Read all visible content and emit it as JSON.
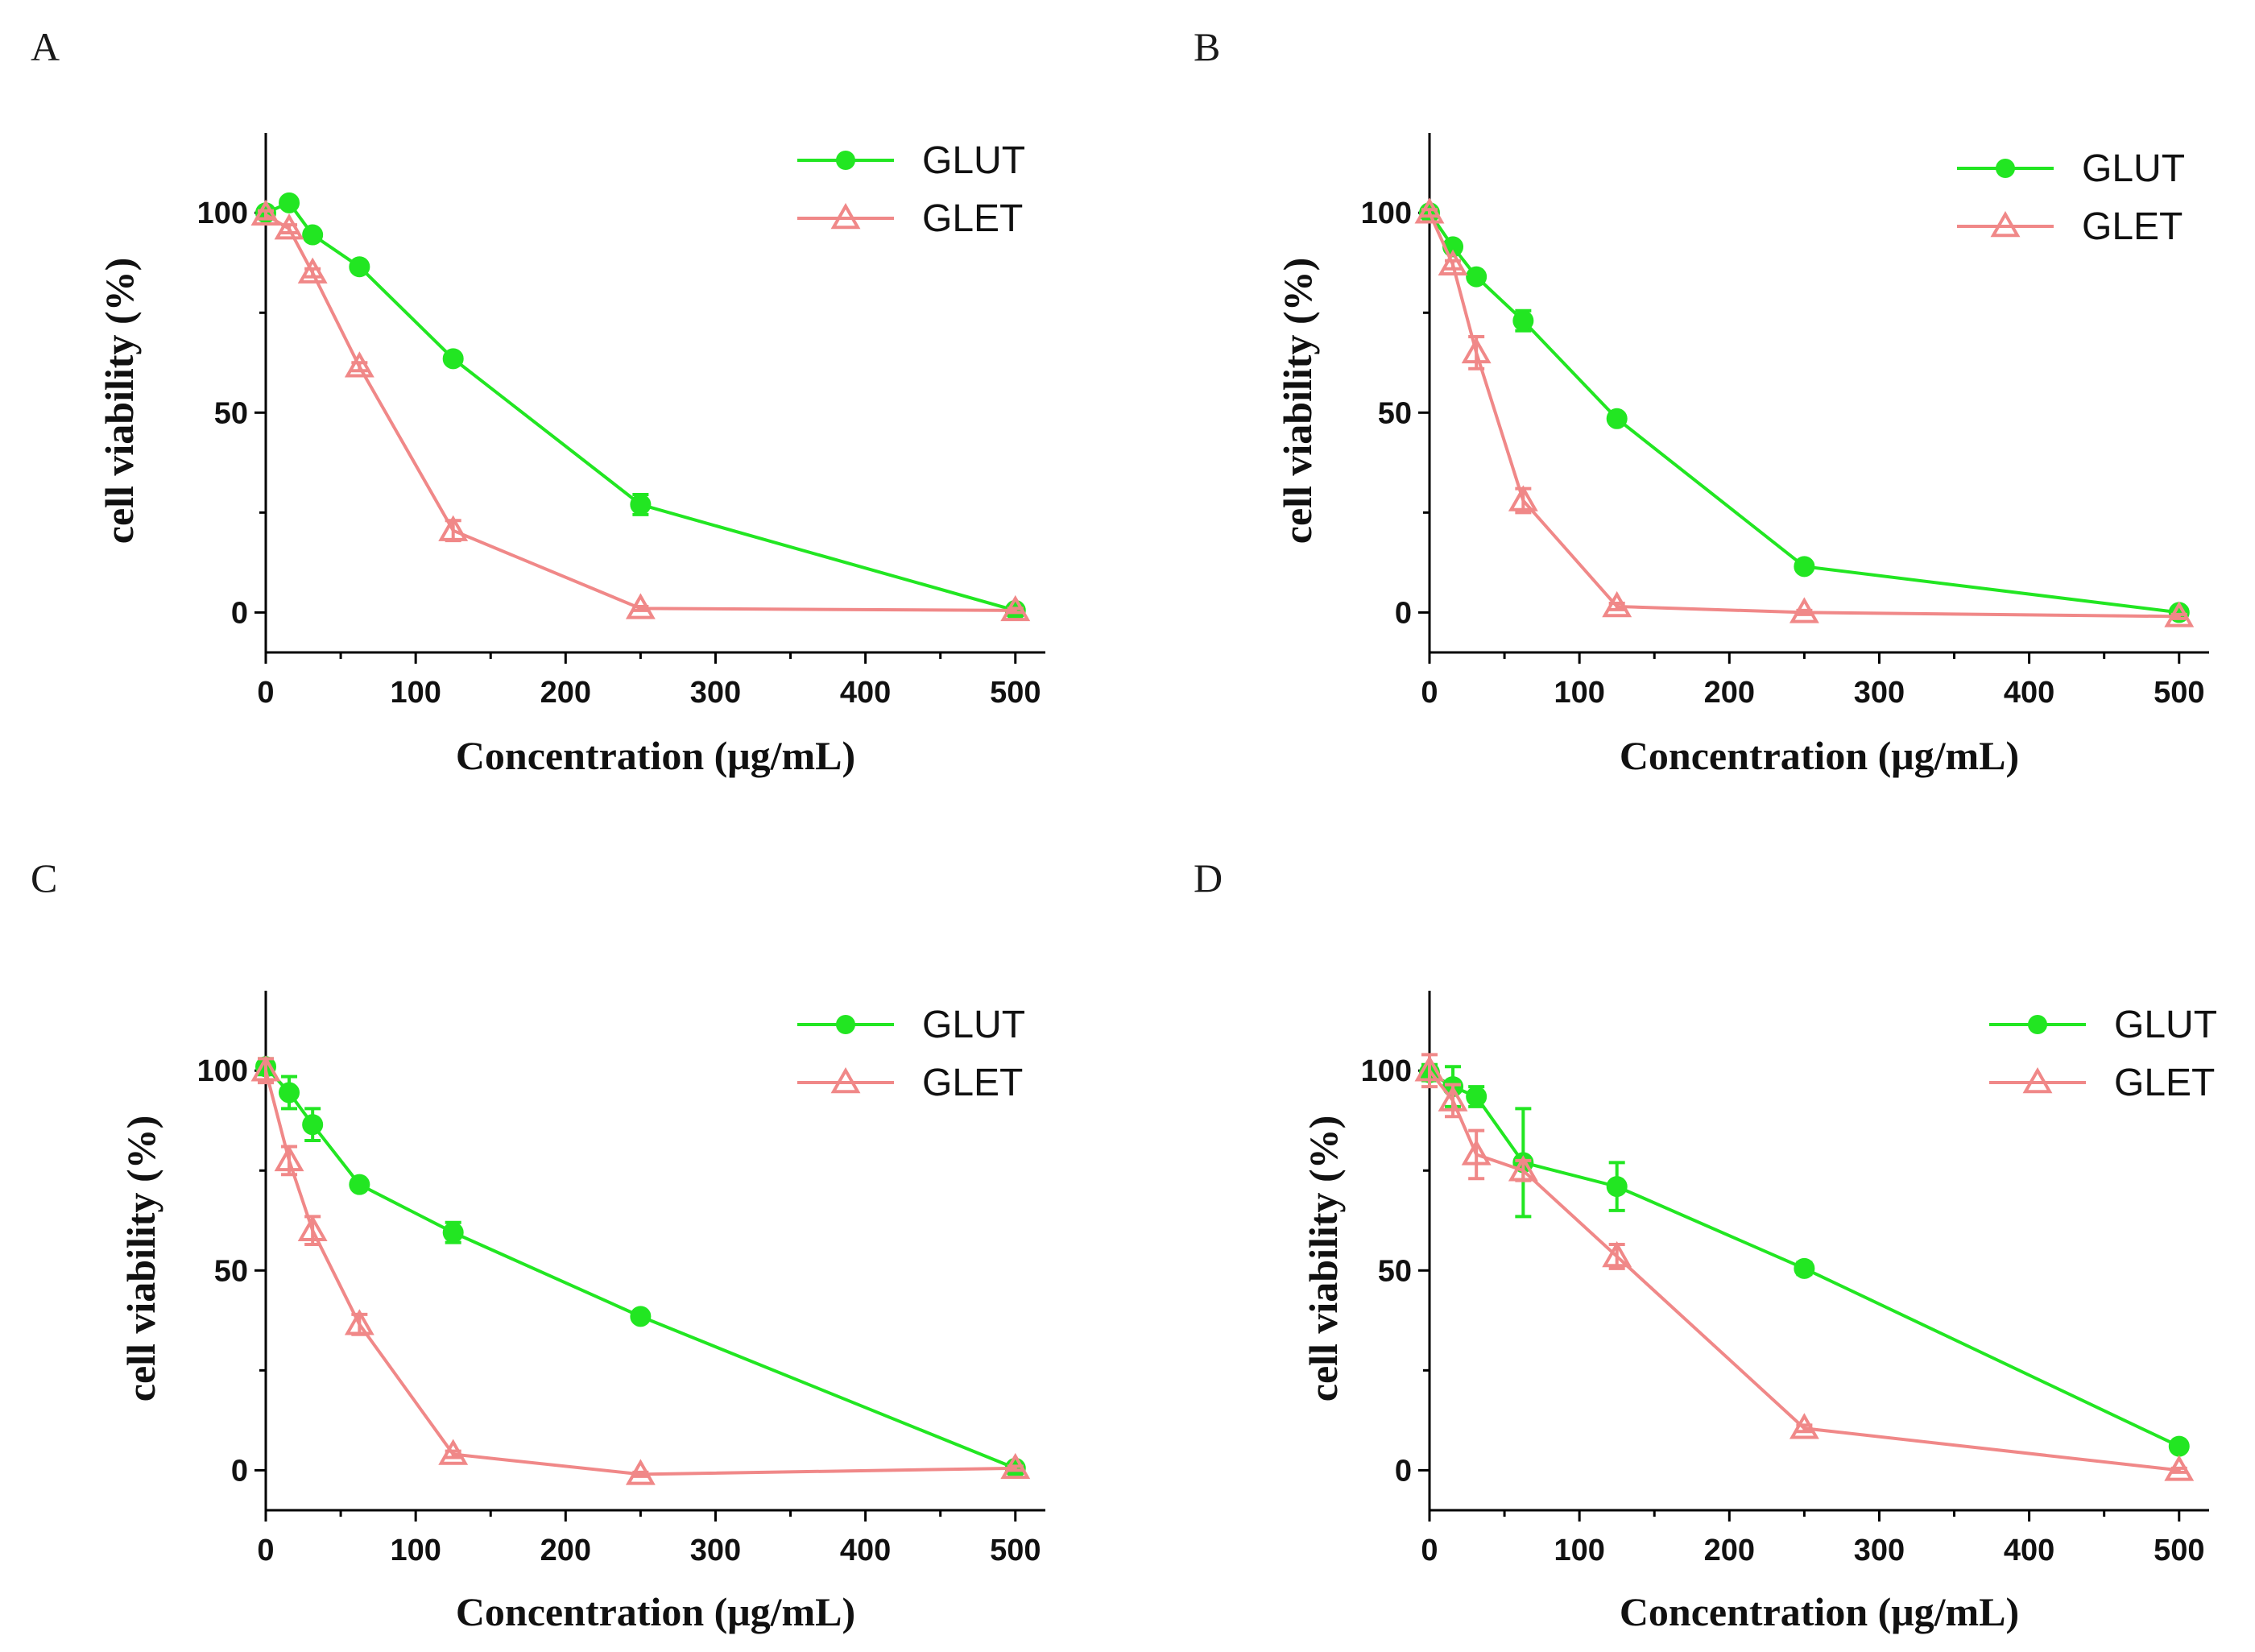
{
  "chart_data": [
    {
      "type": "line",
      "panel": "A",
      "title": "",
      "xlabel": "Concentration (μg/mL)",
      "ylabel": "cell viability (%)",
      "xlim": [
        0,
        520
      ],
      "ylim": [
        -10,
        120
      ],
      "xticks": [
        0,
        100,
        200,
        300,
        400,
        500
      ],
      "yticks": [
        0,
        50,
        100
      ],
      "x": [
        0,
        15.6,
        31.25,
        62.5,
        125,
        250,
        500
      ],
      "series": [
        {
          "name": "GLUT",
          "color": "#22e622",
          "marker": "circle",
          "values": [
            100,
            102.5,
            94.5,
            86.5,
            63.5,
            27,
            0.5
          ],
          "errors": [
            1,
            0.8,
            1,
            0.8,
            0.8,
            2.5,
            0.5
          ]
        },
        {
          "name": "GLET",
          "color": "#f08888",
          "marker": "triangle",
          "values": [
            99.5,
            96,
            85,
            61.5,
            20.5,
            1,
            0.5
          ],
          "errors": [
            1,
            1,
            1,
            1,
            2.5,
            0.5,
            0.5
          ]
        }
      ]
    },
    {
      "type": "line",
      "panel": "B",
      "title": "",
      "xlabel": "Concentration (μg/mL)",
      "ylabel": "cell viability (%)",
      "xlim": [
        0,
        520
      ],
      "ylim": [
        -10,
        120
      ],
      "xticks": [
        0,
        100,
        200,
        300,
        400,
        500
      ],
      "yticks": [
        0,
        50,
        100
      ],
      "x": [
        0,
        15.6,
        31.25,
        62.5,
        125,
        250,
        500
      ],
      "series": [
        {
          "name": "GLUT",
          "color": "#22e622",
          "marker": "circle",
          "values": [
            100,
            91.5,
            84,
            73,
            48.5,
            11.5,
            0
          ],
          "errors": [
            0.8,
            0.8,
            0.8,
            2.5,
            0.8,
            0.8,
            0.5
          ]
        },
        {
          "name": "GLET",
          "color": "#f08888",
          "marker": "triangle",
          "values": [
            100,
            87,
            65,
            28,
            1.5,
            0,
            -1
          ],
          "errors": [
            0.8,
            1,
            4,
            3,
            0.8,
            0.5,
            0.5
          ]
        }
      ]
    },
    {
      "type": "line",
      "panel": "C",
      "title": "",
      "xlabel": "Concentration (μg/mL)",
      "ylabel": "cell viability (%)",
      "xlim": [
        0,
        520
      ],
      "ylim": [
        -10,
        120
      ],
      "xticks": [
        0,
        100,
        200,
        300,
        400,
        500
      ],
      "yticks": [
        0,
        50,
        100
      ],
      "x": [
        0,
        15.6,
        31.25,
        62.5,
        125,
        250,
        500
      ],
      "series": [
        {
          "name": "GLUT",
          "color": "#22e622",
          "marker": "circle",
          "values": [
            101,
            94.5,
            86.5,
            71.5,
            59.5,
            38.5,
            0.5
          ],
          "errors": [
            2,
            4,
            4,
            0.8,
            2.5,
            1.2,
            0.5
          ]
        },
        {
          "name": "GLET",
          "color": "#f08888",
          "marker": "triangle",
          "values": [
            100,
            77.5,
            60,
            36.5,
            4,
            -1,
            0.5
          ],
          "errors": [
            3,
            3.5,
            3.5,
            2.5,
            0.8,
            0.5,
            0.5
          ]
        }
      ]
    },
    {
      "type": "line",
      "panel": "D",
      "title": "",
      "xlabel": "Concentration (μg/mL)",
      "ylabel": "cell viability (%)",
      "xlim": [
        0,
        520
      ],
      "ylim": [
        -10,
        120
      ],
      "xticks": [
        0,
        100,
        200,
        300,
        400,
        500
      ],
      "yticks": [
        0,
        50,
        100
      ],
      "x": [
        0,
        15.6,
        31.25,
        62.5,
        125,
        250,
        500
      ],
      "series": [
        {
          "name": "GLUT",
          "color": "#22e622",
          "marker": "circle",
          "values": [
            99.5,
            96,
            93.5,
            77,
            71,
            50.5,
            6
          ],
          "errors": [
            2,
            5,
            2.5,
            13.5,
            6,
            1.5,
            0.8
          ]
        },
        {
          "name": "GLET",
          "color": "#f08888",
          "marker": "triangle",
          "values": [
            100,
            92.5,
            79,
            75,
            53.5,
            10.5,
            0
          ],
          "errors": [
            4,
            4,
            6,
            2.5,
            3,
            0.8,
            0.5
          ]
        }
      ]
    }
  ]
}
